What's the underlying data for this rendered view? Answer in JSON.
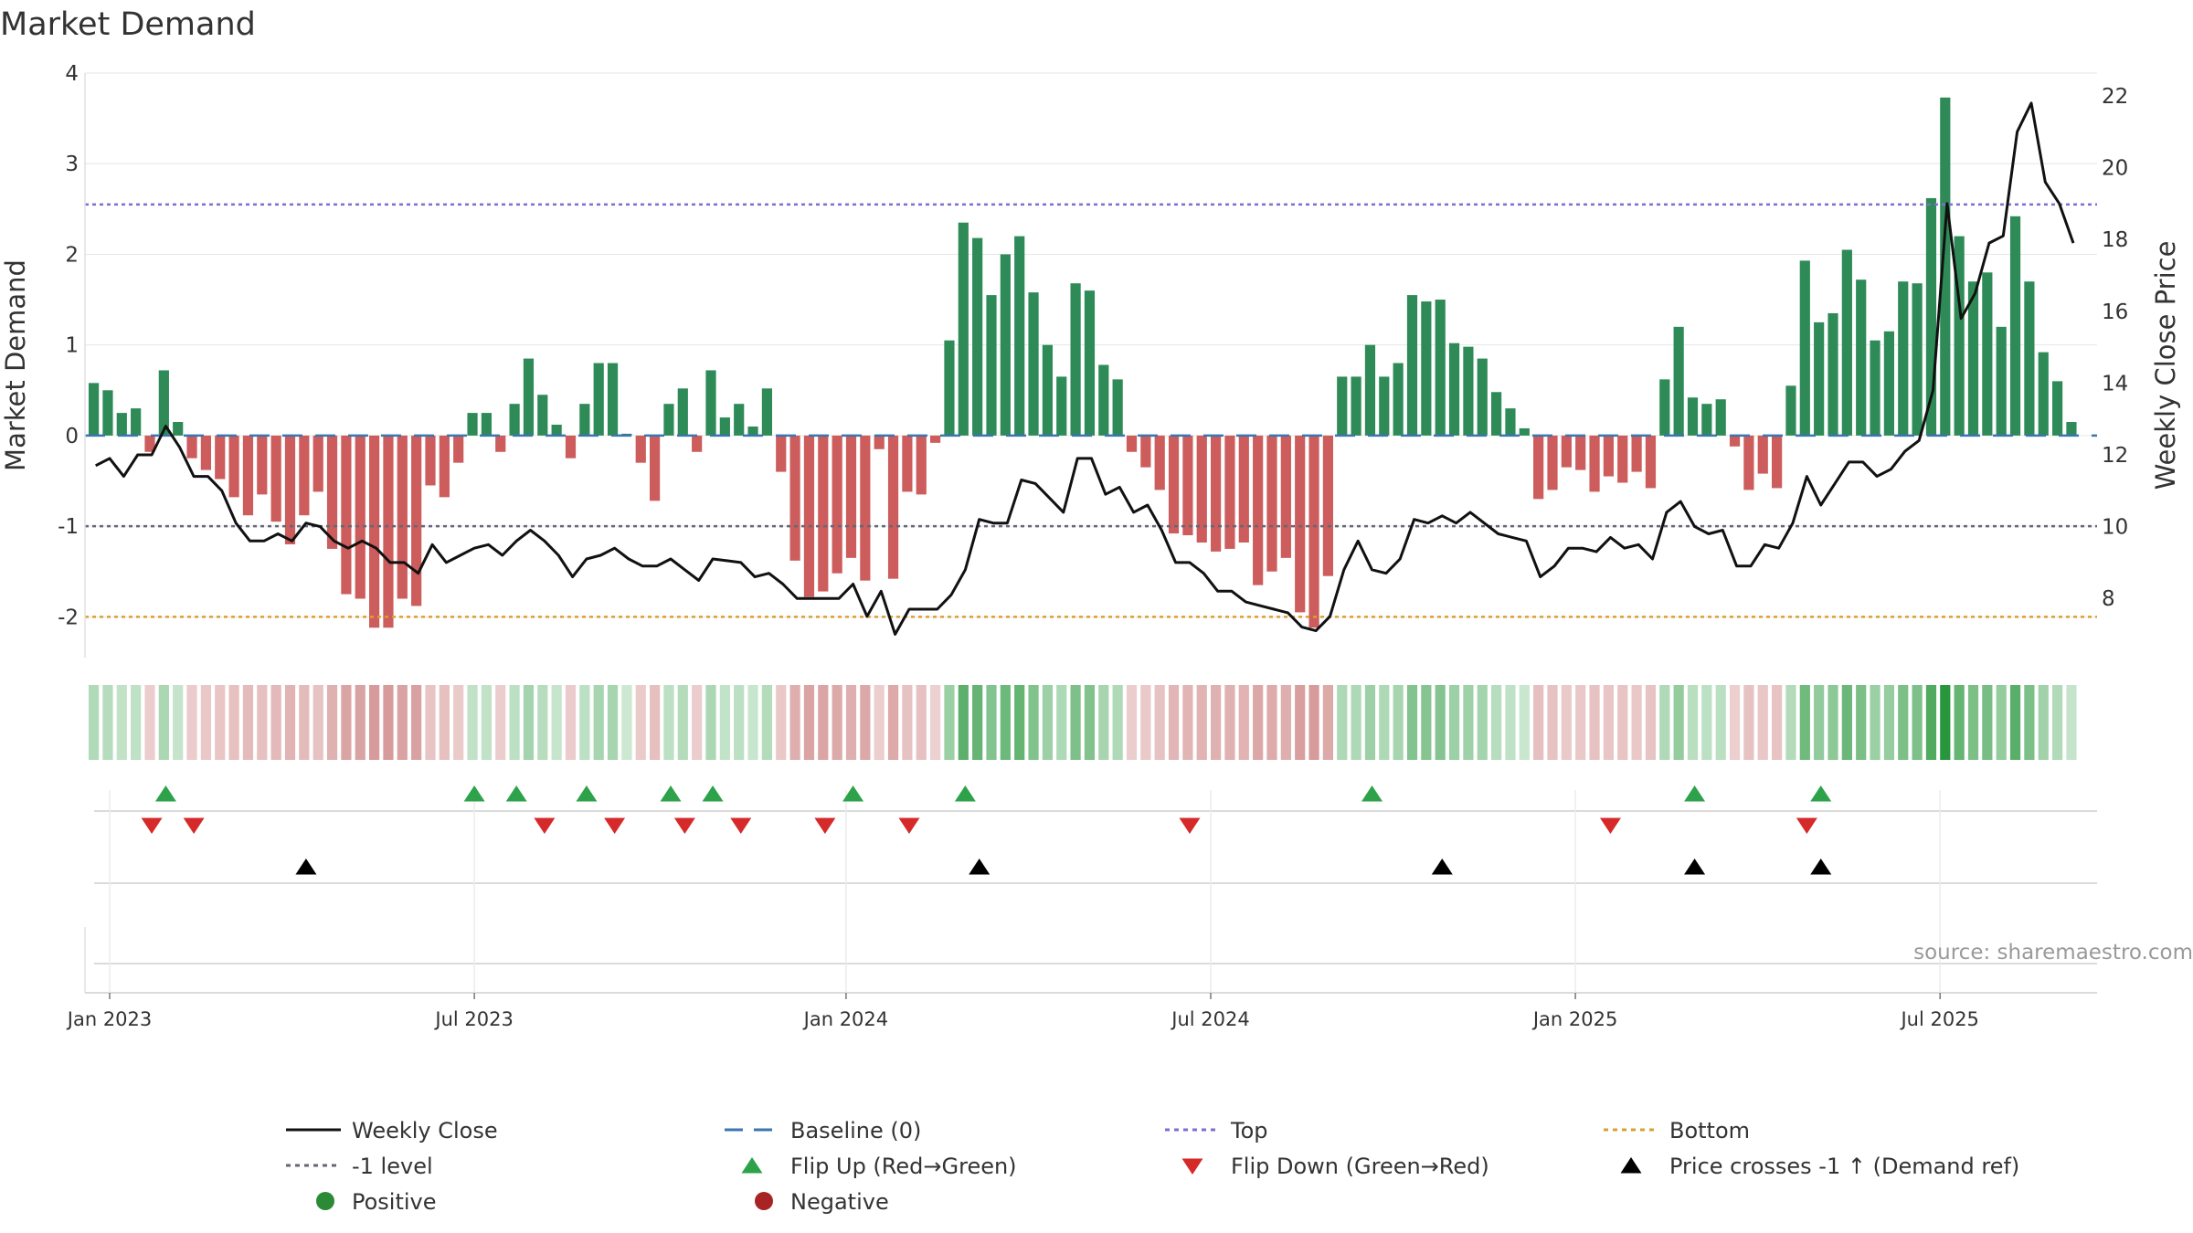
{
  "chart_data": {
    "type": "bar",
    "title": "Market Demand",
    "ylabel": "Market Demand",
    "y2label": "Weekly Close Price",
    "ylim": [
      -2.45,
      4
    ],
    "y2lim": [
      6.9,
      22.5
    ],
    "yticks": [
      4,
      3,
      2,
      1,
      0,
      -1,
      -2
    ],
    "y2ticks": [
      22,
      20,
      18,
      16,
      14,
      12,
      10,
      8
    ],
    "levels": {
      "top": 2.55,
      "minus_one": -1,
      "bottom": -2,
      "baseline": 0
    },
    "date_ticks": [
      {
        "label": "Jan 2023",
        "week": 1
      },
      {
        "label": "Jul 2023",
        "week": 27
      },
      {
        "label": "Jan 2024",
        "week": 53.5
      },
      {
        "label": "Jul 2024",
        "week": 79.5
      },
      {
        "label": "Jan 2025",
        "week": 105.5
      },
      {
        "label": "Jul 2025",
        "week": 131.5
      }
    ],
    "demand": [
      0.58,
      0.5,
      0.25,
      0.3,
      -0.18,
      0.72,
      0.15,
      -0.25,
      -0.38,
      -0.48,
      -0.68,
      -0.88,
      -0.65,
      -0.95,
      -1.2,
      -0.88,
      -0.62,
      -1.25,
      -1.75,
      -1.8,
      -2.12,
      -2.12,
      -1.8,
      -1.88,
      -0.55,
      -0.68,
      -0.3,
      0.25,
      0.25,
      -0.18,
      0.35,
      0.85,
      0.45,
      0.12,
      -0.25,
      0.35,
      0.8,
      0.8,
      0.02,
      -0.3,
      -0.72,
      0.35,
      0.52,
      -0.18,
      0.72,
      0.2,
      0.35,
      0.1,
      0.52,
      -0.4,
      -1.38,
      -1.78,
      -1.72,
      -1.52,
      -1.35,
      -1.6,
      -0.15,
      -1.58,
      -0.62,
      -0.65,
      -0.08,
      1.05,
      2.35,
      2.18,
      1.55,
      2.0,
      2.2,
      1.58,
      1.0,
      0.65,
      1.68,
      1.6,
      0.78,
      0.62,
      -0.18,
      -0.35,
      -0.6,
      -1.08,
      -1.1,
      -1.18,
      -1.28,
      -1.25,
      -1.18,
      -1.65,
      -1.5,
      -1.35,
      -1.95,
      -2.12,
      -1.55,
      0.65,
      0.65,
      1.0,
      0.65,
      0.8,
      1.55,
      1.48,
      1.5,
      1.02,
      0.98,
      0.85,
      0.48,
      0.3,
      0.08,
      -0.7,
      -0.6,
      -0.35,
      -0.38,
      -0.62,
      -0.45,
      -0.52,
      -0.4,
      -0.58,
      0.62,
      1.2,
      0.42,
      0.35,
      0.4,
      -0.12,
      -0.6,
      -0.42,
      -0.58,
      0.55,
      1.93,
      1.25,
      1.35,
      2.05,
      1.72,
      1.05,
      1.15,
      1.7,
      1.68,
      2.62,
      3.73,
      2.2,
      1.7,
      1.8,
      1.2,
      2.42,
      1.7,
      0.92,
      0.6,
      0.15
    ],
    "weekly_close": [
      11.7,
      11.9,
      11.4,
      12.0,
      12.0,
      12.8,
      12.2,
      11.4,
      11.4,
      11.0,
      10.1,
      9.6,
      9.6,
      9.8,
      9.6,
      10.1,
      10.0,
      9.6,
      9.4,
      9.6,
      9.4,
      9.0,
      9.0,
      8.7,
      9.5,
      9.0,
      9.2,
      9.4,
      9.5,
      9.2,
      9.6,
      9.9,
      9.6,
      9.2,
      8.6,
      9.1,
      9.2,
      9.4,
      9.1,
      8.9,
      8.9,
      9.1,
      8.8,
      8.5,
      9.1,
      9.05,
      9.0,
      8.6,
      8.7,
      8.4,
      8.0,
      8.0,
      8.0,
      8.0,
      8.4,
      7.5,
      8.2,
      7.0,
      7.7,
      7.7,
      7.7,
      8.1,
      8.8,
      10.2,
      10.1,
      10.1,
      11.3,
      11.2,
      10.8,
      10.4,
      11.9,
      11.9,
      10.9,
      11.1,
      10.4,
      10.6,
      9.9,
      9.0,
      9.0,
      8.7,
      8.2,
      8.2,
      7.9,
      7.8,
      7.7,
      7.6,
      7.2,
      7.1,
      7.5,
      8.8,
      9.6,
      8.8,
      8.7,
      9.1,
      10.2,
      10.1,
      10.3,
      10.1,
      10.4,
      10.1,
      9.8,
      9.7,
      9.6,
      8.6,
      8.9,
      9.4,
      9.4,
      9.3,
      9.7,
      9.4,
      9.5,
      9.1,
      10.4,
      10.7,
      10.0,
      9.8,
      9.9,
      8.9,
      8.9,
      9.5,
      9.4,
      10.1,
      11.4,
      10.6,
      11.2,
      11.8,
      11.8,
      11.4,
      11.6,
      12.1,
      12.4,
      13.8,
      19.0,
      15.8,
      16.5,
      17.9,
      18.1,
      21.0,
      21.8,
      19.6,
      19.0,
      17.9
    ],
    "flip_up_weeks": [
      5,
      27,
      30,
      35,
      41,
      44,
      54,
      62,
      91,
      114,
      123
    ],
    "flip_down_weeks": [
      4,
      7,
      32,
      37,
      42,
      46,
      52,
      58,
      78,
      108,
      122
    ],
    "price_cross_weeks": [
      15,
      63,
      96,
      114,
      123
    ],
    "legend": [
      {
        "label": "Weekly Close",
        "symbol": "line",
        "color": "#111111"
      },
      {
        "label": "Baseline (0)",
        "symbol": "dash",
        "color": "#3a76b0"
      },
      {
        "label": "Top",
        "symbol": "dot",
        "color": "#7b6fd0"
      },
      {
        "label": "Bottom",
        "symbol": "dot",
        "color": "#d9a030"
      },
      {
        "label": "-1 level",
        "symbol": "dot",
        "color": "#666677"
      },
      {
        "label": "Flip Up (Red→Green)",
        "symbol": "tri-up",
        "color": "#2ea24a"
      },
      {
        "label": "Flip Down (Green→Red)",
        "symbol": "tri-down",
        "color": "#d62a2a"
      },
      {
        "label": "Price crosses -1 ↑ (Demand ref)",
        "symbol": "tri-up",
        "color": "#000000"
      },
      {
        "label": "Positive",
        "symbol": "circle",
        "color": "#2a8a35"
      },
      {
        "label": "Negative",
        "symbol": "circle",
        "color": "#a82424"
      }
    ],
    "source": "source: sharemaestro.com"
  },
  "colors": {
    "positive_bar": "#2e8b57",
    "negative_bar": "#cd5c5c",
    "close_line": "#111111",
    "baseline": "#3a76b0",
    "top": "#7b6fd0",
    "minus_one": "#666677",
    "bottom": "#d9a030",
    "flip_up": "#2ea24a",
    "flip_down": "#d62a2a",
    "price_cross": "#000000",
    "grid": "#e6e6e6"
  }
}
